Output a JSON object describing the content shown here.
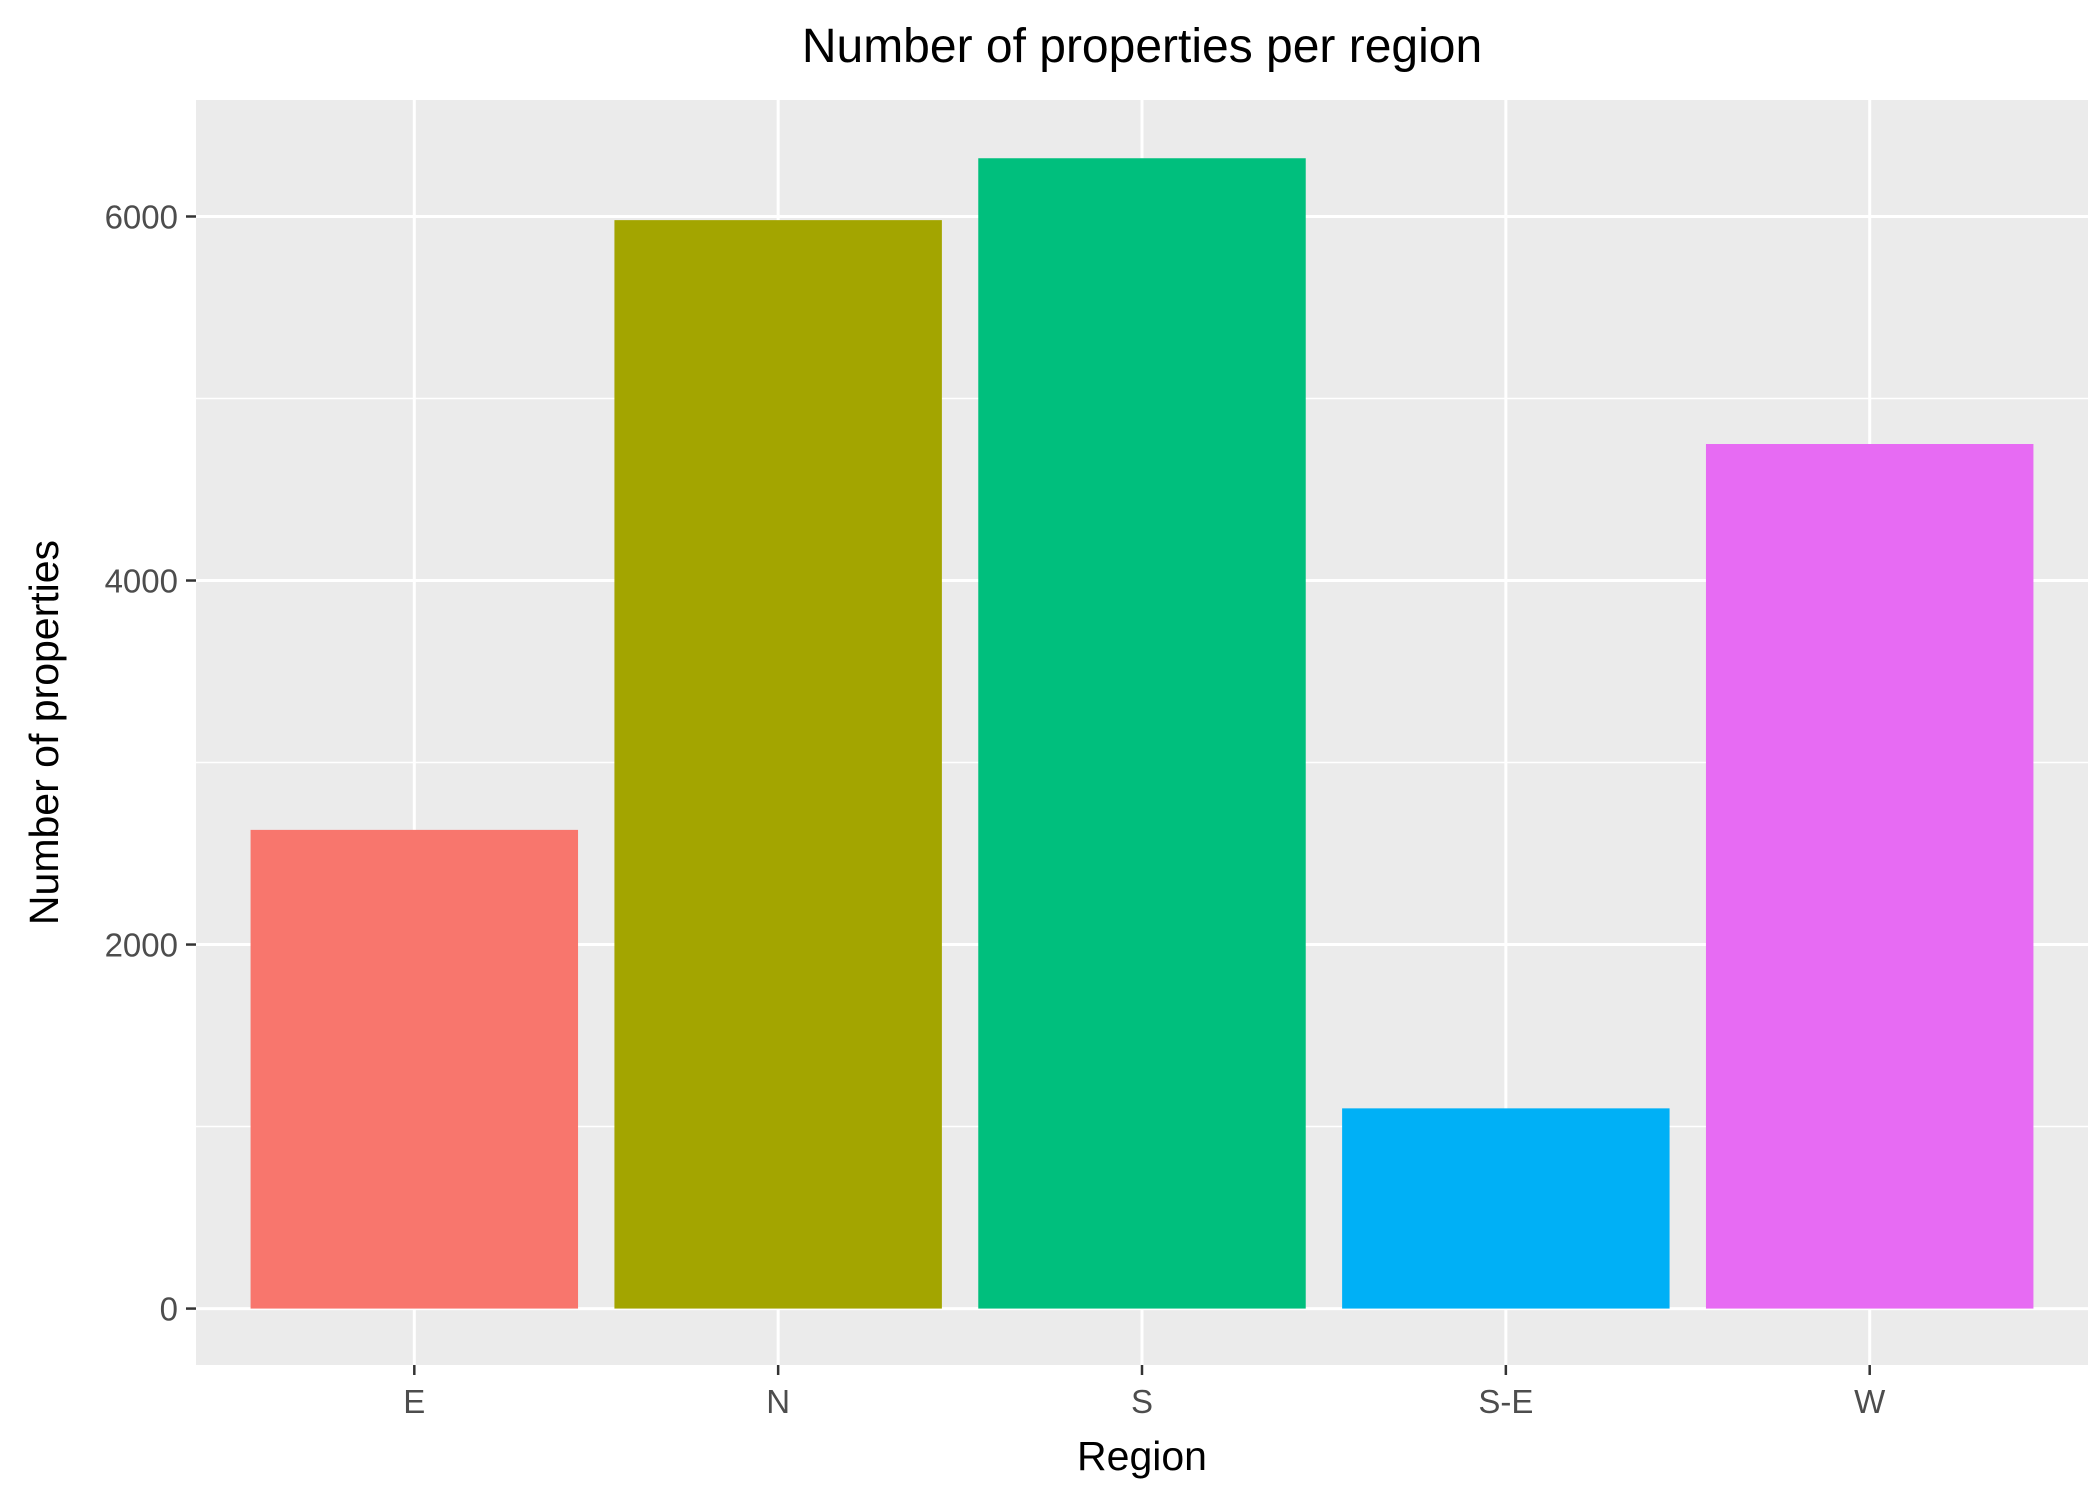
{
  "chart_data": {
    "type": "bar",
    "title": "Number of properties per region",
    "xlabel": "Region",
    "ylabel": "Number of properties",
    "categories": [
      "E",
      "N",
      "S",
      "S-E",
      "W"
    ],
    "values": [
      2630,
      5980,
      6320,
      1100,
      4750
    ],
    "colors": [
      "#F8766D",
      "#A3A500",
      "#00BF7D",
      "#00B0F6",
      "#E76BF3"
    ],
    "ylim": [
      -310,
      6640
    ],
    "yticks": [
      0,
      2000,
      4000,
      6000
    ],
    "yticks_labels": [
      "0",
      "2000",
      "4000",
      "6000"
    ],
    "grid": true,
    "panel_background": "#EBEBEB",
    "grid_color": "#FFFFFF",
    "legend": "none"
  }
}
